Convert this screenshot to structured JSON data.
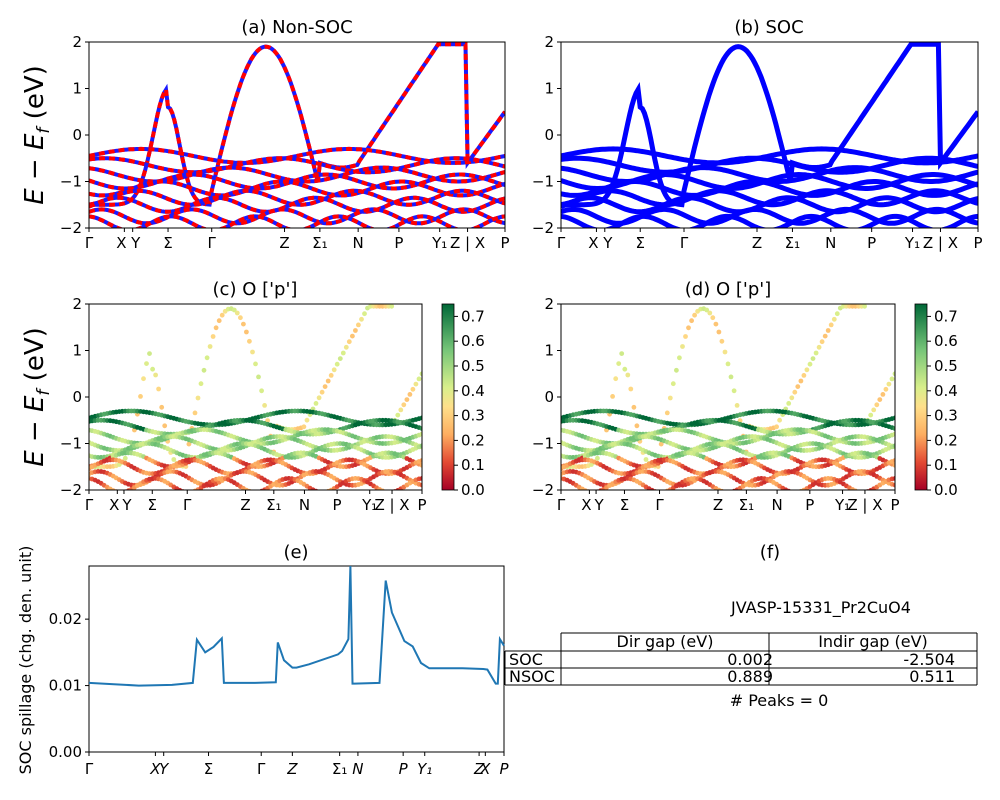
{
  "chart_data": [
    {
      "id": "a",
      "type": "line",
      "title": "(a) Non-SOC",
      "ylabel": "E - E_f (eV)",
      "ylim": [
        -2,
        2
      ],
      "yticks": [
        "2",
        "1",
        "0",
        "-1",
        "-2"
      ],
      "xticks": [
        "Γ",
        "X",
        "Y",
        "Σ",
        "Γ",
        "Z",
        "Σ₁",
        "N",
        "P",
        "Y₁",
        "Z | X",
        "P"
      ],
      "colors": [
        "#ff0000",
        "#1a1aff"
      ]
    },
    {
      "id": "b",
      "type": "line",
      "title": "(b) SOC",
      "ylim": [
        -2,
        2
      ],
      "yticks": [
        "2",
        "1",
        "0",
        "-1",
        "-2"
      ],
      "xticks": [
        "Γ",
        "X",
        "Y",
        "Σ",
        "Γ",
        "Z",
        "Σ₁",
        "N",
        "P",
        "Y₁",
        "Z | X",
        "P"
      ],
      "colors": [
        "#0000ff"
      ]
    },
    {
      "id": "c",
      "type": "scatter",
      "title": "(c)  O ['p']",
      "ylabel": "E - E_f (eV)",
      "ylim": [
        -2,
        2
      ],
      "yticks": [
        "2",
        "1",
        "0",
        "-1",
        "-2"
      ],
      "xticks": [
        "Γ",
        "X",
        "Y",
        "Σ",
        "Γ",
        "Z",
        "Σ₁",
        "N",
        "P",
        "Y₁",
        "Z | X",
        "P"
      ],
      "colorbar_ticks": [
        "0.7",
        "0.6",
        "0.5",
        "0.4",
        "0.3",
        "0.2",
        "0.1",
        "0.0"
      ],
      "colorbar_range": [
        0,
        0.75
      ]
    },
    {
      "id": "d",
      "type": "scatter",
      "title": "(d) O ['p']",
      "ylim": [
        -2,
        2
      ],
      "yticks": [
        "2",
        "1",
        "0",
        "-1",
        "-2"
      ],
      "xticks": [
        "Γ",
        "X",
        "Y",
        "Σ",
        "Γ",
        "Z",
        "Σ₁",
        "N",
        "P",
        "Y₁",
        "Z | X",
        "P"
      ],
      "colorbar_ticks": [
        "0.7",
        "0.6",
        "0.5",
        "0.4",
        "0.3",
        "0.2",
        "0.1",
        "0.0"
      ],
      "colorbar_range": [
        0,
        0.75
      ]
    },
    {
      "id": "e",
      "type": "line",
      "title": "(e)",
      "ylabel": "SOC spillage (chg. den. unit)",
      "ylim": [
        0,
        0.028
      ],
      "yticks": [
        "0.02",
        "0.01",
        "0.00"
      ],
      "xticks": [
        "Γ",
        "X",
        "Y",
        "Σ",
        "Γ",
        "Z",
        "Σ₁",
        "N",
        "P",
        "Y₁",
        "Z",
        "X",
        "P"
      ],
      "color": "#1f77b4",
      "x": [
        0,
        0.06,
        0.12,
        0.2,
        0.25,
        0.26,
        0.28,
        0.3,
        0.32,
        0.325,
        0.33,
        0.4,
        0.45,
        0.455,
        0.47,
        0.49,
        0.5,
        0.53,
        0.6,
        0.61,
        0.625,
        0.63,
        0.635,
        0.64,
        0.7,
        0.715,
        0.73,
        0.76,
        0.78,
        0.8,
        0.82,
        0.84,
        0.86,
        0.9,
        0.95,
        0.96,
        0.98,
        0.985,
        0.99,
        1.0
      ],
      "y": [
        0.0104,
        0.0102,
        0.01,
        0.0101,
        0.0104,
        0.0169,
        0.015,
        0.0158,
        0.0171,
        0.0104,
        0.0104,
        0.0104,
        0.0105,
        0.0165,
        0.0138,
        0.0127,
        0.0127,
        0.0132,
        0.0147,
        0.0152,
        0.017,
        0.0285,
        0.0103,
        0.0103,
        0.0104,
        0.0258,
        0.021,
        0.0167,
        0.0159,
        0.0134,
        0.0126,
        0.0126,
        0.0126,
        0.0126,
        0.0125,
        0.0124,
        0.0103,
        0.0103,
        0.017,
        0.016
      ]
    },
    {
      "id": "f",
      "type": "table",
      "title": "(f)",
      "caption": "JVASP-15331_Pr2CuO4",
      "columns": [
        "Dir gap (eV)",
        "Indir gap (eV)"
      ],
      "rows": [
        {
          "label": "SOC",
          "values": [
            "0.002",
            "-2.504"
          ]
        },
        {
          "label": "NSOC",
          "values": [
            "0.889",
            "0.511"
          ]
        }
      ],
      "footer": "# Peaks = 0"
    }
  ]
}
